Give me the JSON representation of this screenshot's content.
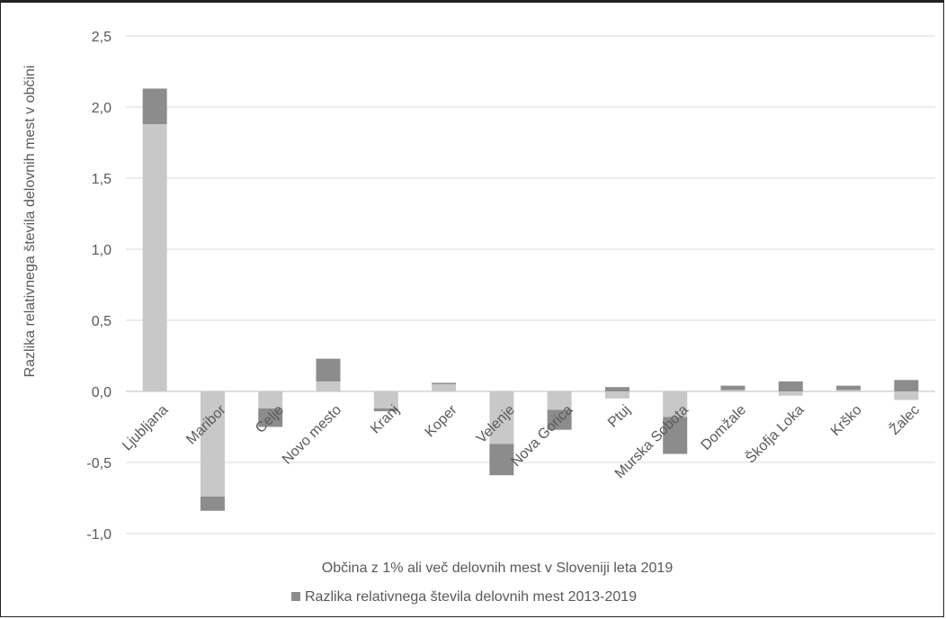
{
  "chart_data": {
    "type": "bar",
    "stacked": true,
    "xlabel": "Občina z 1% ali več delovnih mest v Sloveniji leta 2019",
    "ylabel": "Razlika relativnega števila delovnih mest v občini",
    "ylim": [
      -1.0,
      2.5
    ],
    "yticks": [
      "-1,0",
      "-0,5",
      "0,0",
      "0,5",
      "1,0",
      "1,5",
      "2,0",
      "2,5"
    ],
    "ytick_values": [
      -1.0,
      -0.5,
      0.0,
      0.5,
      1.0,
      1.5,
      2.0,
      2.5
    ],
    "grid": true,
    "legend_position": "bottom",
    "categories": [
      "Ljubljana",
      "Maribor",
      "Celje",
      "Novo mesto",
      "Kranj",
      "Koper",
      "Velenje",
      "Nova Gorica",
      "Ptuj",
      "Murska Sobota",
      "Domžale",
      "Škofja Loka",
      "Krško",
      "Žalec"
    ],
    "series": [
      {
        "color": "#c8c8c8",
        "values": [
          1.88,
          -0.74,
          -0.12,
          0.07,
          -0.12,
          0.05,
          -0.37,
          -0.13,
          -0.05,
          -0.18,
          0.01,
          -0.03,
          0.01,
          -0.06
        ]
      },
      {
        "name": "Razlika relativnega števila delovnih mest 2013-2019",
        "color": "#8c8c8c",
        "values": [
          0.25,
          -0.1,
          -0.13,
          0.16,
          -0.02,
          0.01,
          -0.22,
          -0.14,
          0.03,
          -0.26,
          0.03,
          0.07,
          0.03,
          0.08
        ]
      }
    ],
    "legend": [
      "Razlika relativnega števila delovnih mest 2013-2019"
    ]
  }
}
